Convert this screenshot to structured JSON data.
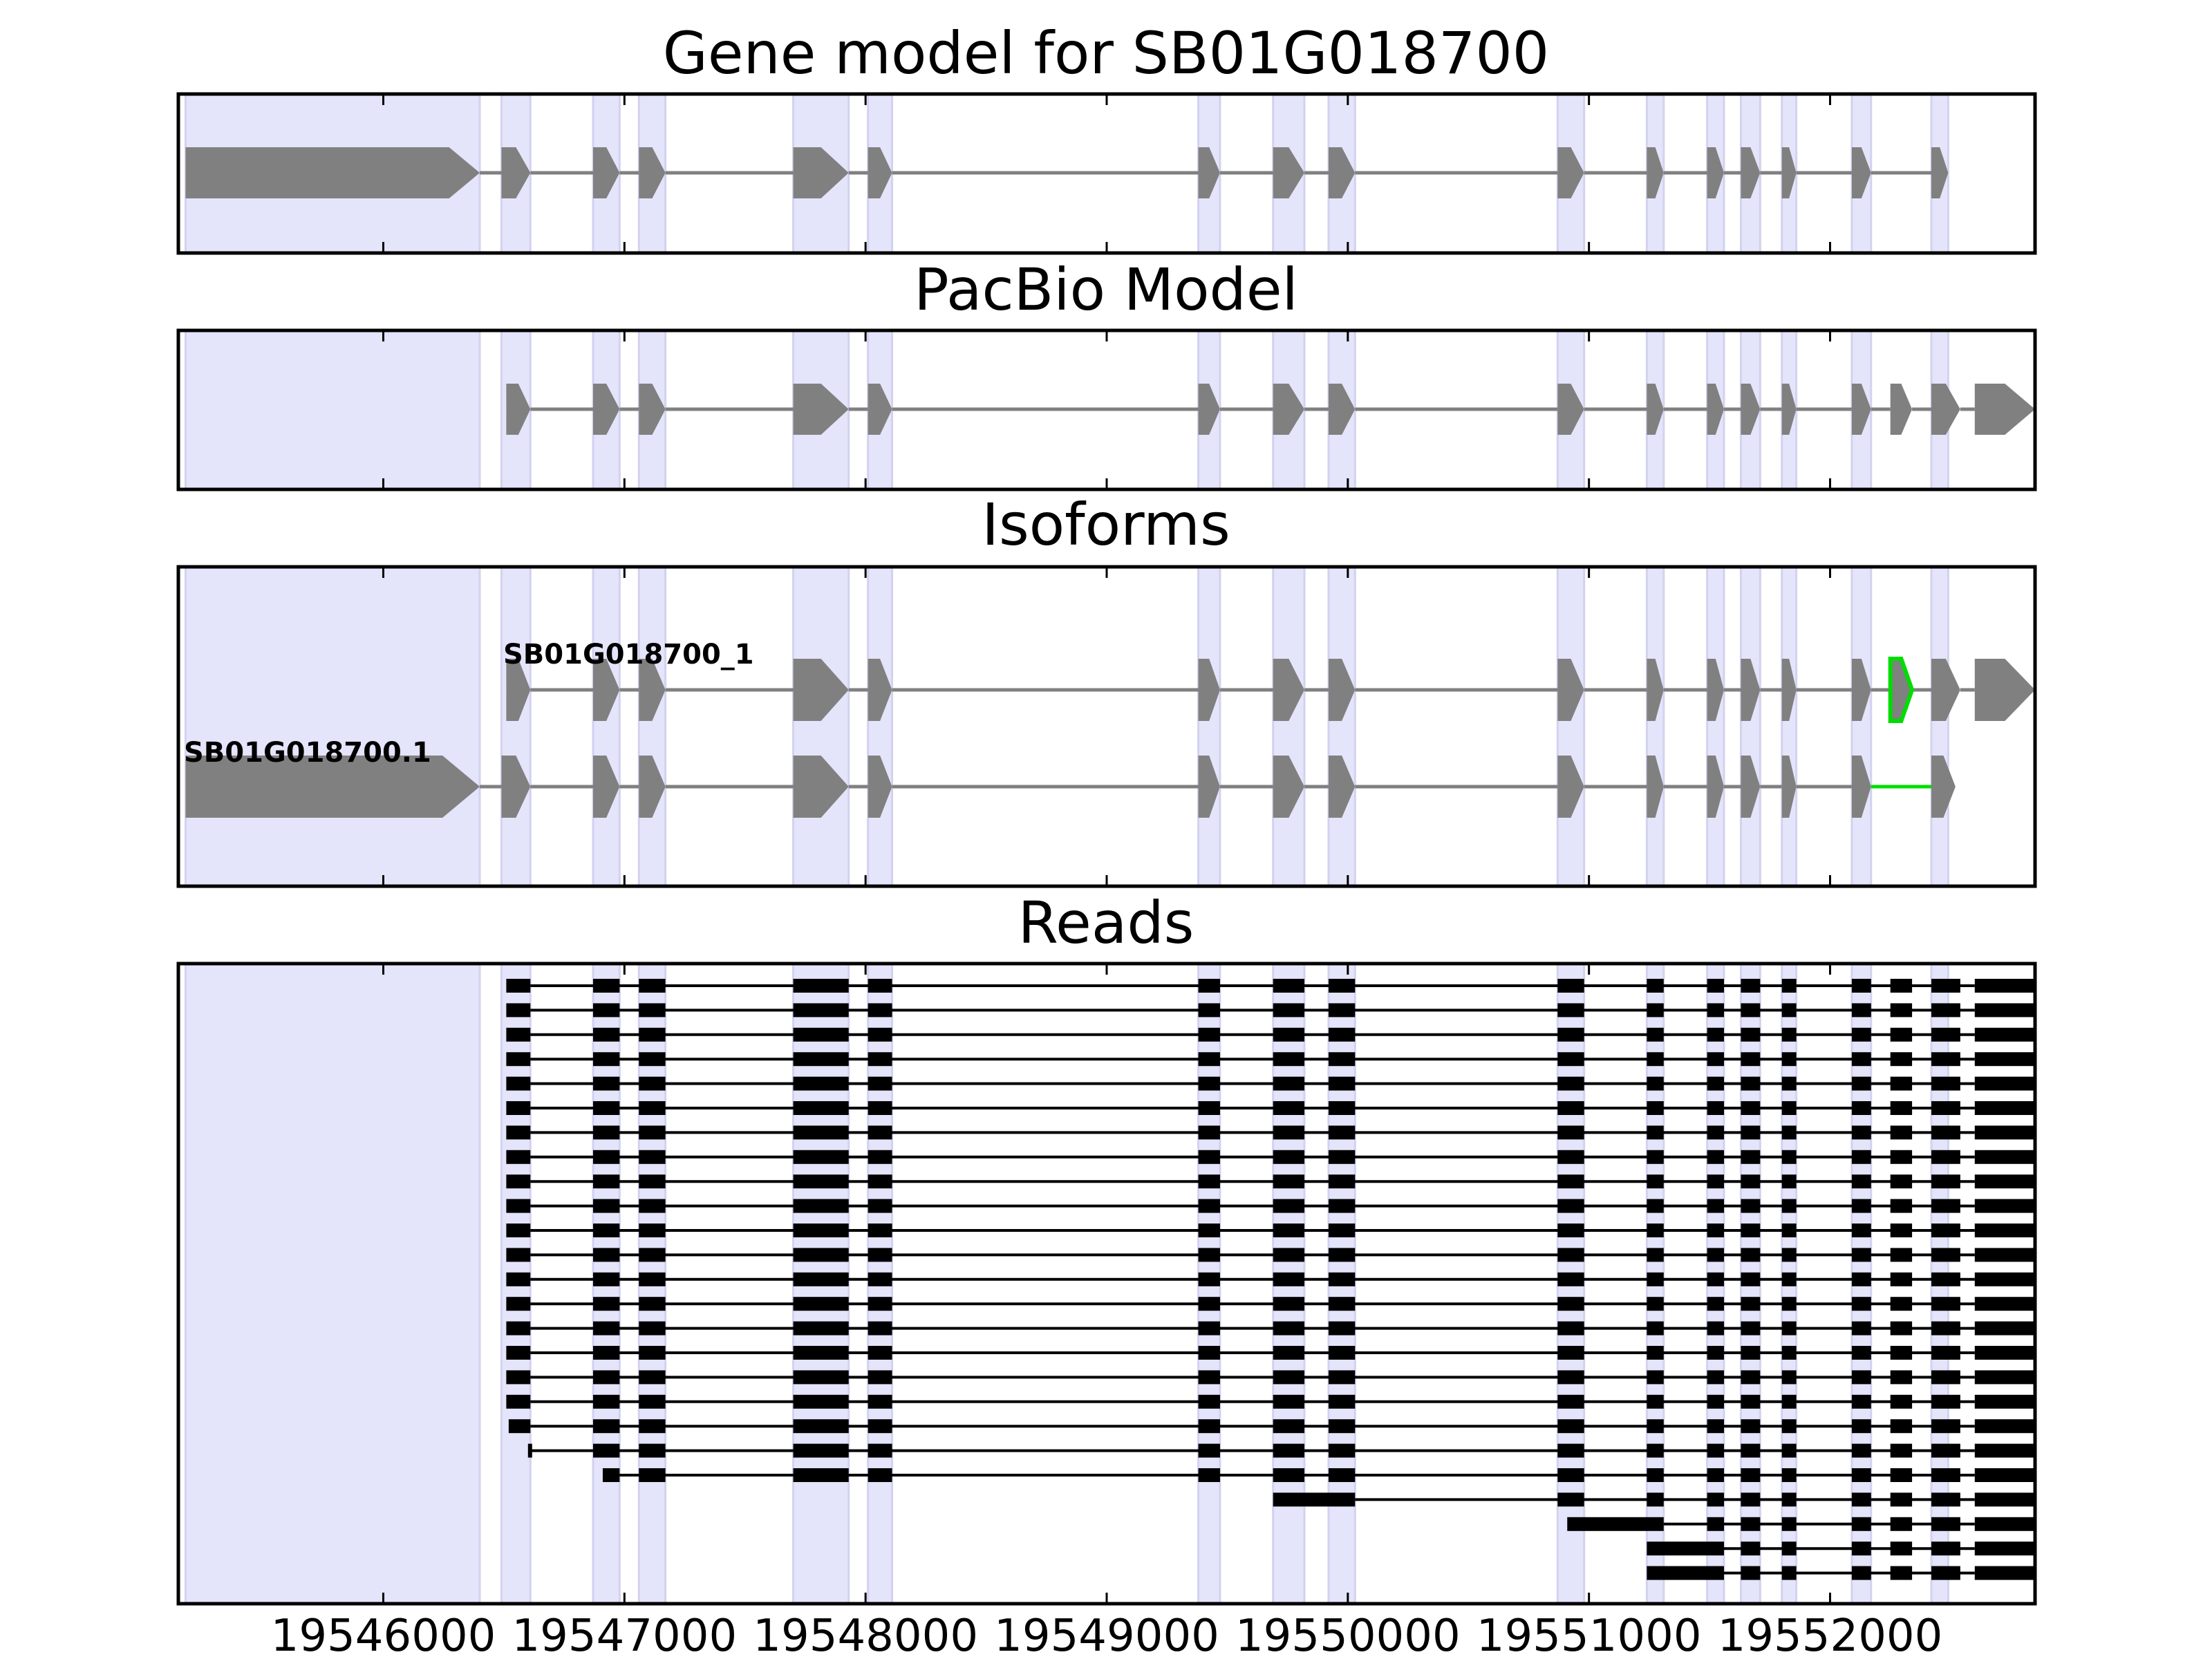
{
  "chart_data": {
    "type": "gene-model",
    "xlim": [
      19545150,
      19552850
    ],
    "xticks": [
      19546000,
      19547000,
      19548000,
      19549000,
      19550000,
      19551000,
      19552000
    ],
    "xtick_labels": [
      "19546000",
      "19547000",
      "19548000",
      "19549000",
      "19550000",
      "19551000",
      "19552000"
    ],
    "highlight_color": "#e4e4fa",
    "feature_color": "#808080",
    "novel_color": "#00dd00",
    "read_color": "#000000",
    "exon_bands": [
      [
        19545180,
        19546400
      ],
      [
        19546490,
        19546610
      ],
      [
        19546870,
        19546980
      ],
      [
        19547060,
        19547170
      ],
      [
        19547700,
        19547930
      ],
      [
        19548010,
        19548110
      ],
      [
        19549380,
        19549470
      ],
      [
        19549690,
        19549820
      ],
      [
        19549920,
        19550030
      ],
      [
        19550870,
        19550980
      ],
      [
        19551240,
        19551310
      ],
      [
        19551490,
        19551560
      ],
      [
        19551630,
        19551710
      ],
      [
        19551800,
        19551860
      ],
      [
        19552090,
        19552170
      ],
      [
        19552420,
        19552490
      ]
    ],
    "panels": [
      {
        "title": "Gene model for SB01G018700",
        "tracks": [
          {
            "exons": [
              [
                19545180,
                19546400
              ],
              [
                19546490,
                19546610
              ],
              [
                19546870,
                19546980
              ],
              [
                19547060,
                19547170
              ],
              [
                19547700,
                19547930
              ],
              [
                19548010,
                19548110
              ],
              [
                19549380,
                19549470
              ],
              [
                19549690,
                19549820
              ],
              [
                19549920,
                19550030
              ],
              [
                19550870,
                19550980
              ],
              [
                19551240,
                19551310
              ],
              [
                19551490,
                19551560
              ],
              [
                19551630,
                19551710
              ],
              [
                19551800,
                19551860
              ],
              [
                19552090,
                19552170
              ],
              [
                19552420,
                19552490
              ]
            ]
          }
        ]
      },
      {
        "title": "PacBio Model",
        "tracks": [
          {
            "exons": [
              [
                19546510,
                19546610
              ],
              [
                19546870,
                19546980
              ],
              [
                19547060,
                19547170
              ],
              [
                19547700,
                19547930
              ],
              [
                19548010,
                19548110
              ],
              [
                19549380,
                19549470
              ],
              [
                19549690,
                19549820
              ],
              [
                19549920,
                19550030
              ],
              [
                19550870,
                19550980
              ],
              [
                19551240,
                19551310
              ],
              [
                19551490,
                19551560
              ],
              [
                19551630,
                19551710
              ],
              [
                19551800,
                19551860
              ],
              [
                19552090,
                19552170
              ],
              [
                19552250,
                19552340
              ],
              [
                19552420,
                19552540
              ],
              [
                19552600,
                19552850
              ]
            ]
          }
        ]
      },
      {
        "title": "Isoforms",
        "tracks": [
          {
            "label": "SB01G018700_1",
            "exons": [
              [
                19546510,
                19546610
              ],
              [
                19546870,
                19546980
              ],
              [
                19547060,
                19547170
              ],
              [
                19547700,
                19547930
              ],
              [
                19548010,
                19548110
              ],
              [
                19549380,
                19549470
              ],
              [
                19549690,
                19549820
              ],
              [
                19549920,
                19550030
              ],
              [
                19550870,
                19550980
              ],
              [
                19551240,
                19551310
              ],
              [
                19551490,
                19551560
              ],
              [
                19551630,
                19551710
              ],
              [
                19551800,
                19551860
              ],
              [
                19552090,
                19552170
              ],
              [
                19552250,
                19552340
              ],
              [
                19552420,
                19552540
              ],
              [
                19552600,
                19552850
              ]
            ],
            "novel_exons": [
              14
            ]
          },
          {
            "label": "SB01G018700.1",
            "exons": [
              [
                19545180,
                19546400
              ],
              [
                19546490,
                19546610
              ],
              [
                19546870,
                19546980
              ],
              [
                19547060,
                19547170
              ],
              [
                19547700,
                19547930
              ],
              [
                19548010,
                19548110
              ],
              [
                19549380,
                19549470
              ],
              [
                19549690,
                19549820
              ],
              [
                19549920,
                19550030
              ],
              [
                19550870,
                19550980
              ],
              [
                19551240,
                19551310
              ],
              [
                19551490,
                19551560
              ],
              [
                19551630,
                19551710
              ],
              [
                19551800,
                19551860
              ],
              [
                19552090,
                19552170
              ],
              [
                19552420,
                19552520
              ]
            ],
            "novel_introns": [
              14
            ]
          }
        ]
      },
      {
        "title": "Reads",
        "read_full_exons": [
          [
            19546510,
            19546610
          ],
          [
            19546870,
            19546980
          ],
          [
            19547060,
            19547170
          ],
          [
            19547700,
            19547930
          ],
          [
            19548010,
            19548110
          ],
          [
            19549380,
            19549470
          ],
          [
            19549690,
            19549820
          ],
          [
            19549920,
            19550030
          ],
          [
            19550870,
            19550980
          ],
          [
            19551240,
            19551310
          ],
          [
            19551490,
            19551560
          ],
          [
            19551630,
            19551710
          ],
          [
            19551800,
            19551860
          ],
          [
            19552090,
            19552170
          ],
          [
            19552250,
            19552340
          ],
          [
            19552420,
            19552540
          ],
          [
            19552600,
            19552850
          ]
        ],
        "read_count": 25,
        "partial_reads": [
          {
            "row": 18,
            "from_exon": 0,
            "first_start": 19546520
          },
          {
            "row": 19,
            "from_exon": 0,
            "first_start": 19546600
          },
          {
            "row": 20,
            "from_exon": 1,
            "first_start": 19546910
          },
          {
            "row": 21,
            "from_exon": 7,
            "first_start": 19549690
          },
          {
            "row": 22,
            "from_exon": 9,
            "first_start": 19550910
          },
          {
            "row": 23,
            "from_exon": 10,
            "first_start": 19551240
          },
          {
            "row": 24,
            "from_exon": 10,
            "first_start": 19551240
          }
        ]
      }
    ]
  }
}
